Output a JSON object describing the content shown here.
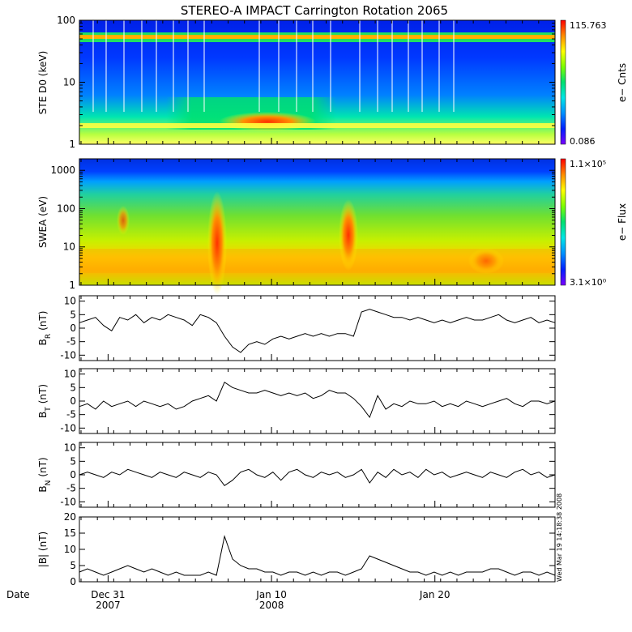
{
  "title": "STEREO-A IMPACT Carrington Rotation 2065",
  "timestamp": "Wed Mar 19 14:18:38 2008",
  "xaxis": {
    "date_label": "Date",
    "ticks": [
      {
        "day": "Dec 31",
        "year": "2007",
        "pos": 0.0603
      },
      {
        "day": "Jan 10",
        "year": "2008",
        "pos": 0.4039
      },
      {
        "day": "Jan 20",
        "year": "",
        "pos": 0.7474
      }
    ]
  },
  "colorbar_colors": [
    "#7a00ff",
    "#0020ff",
    "#0090ff",
    "#00e6e6",
    "#00e070",
    "#7cff00",
    "#ffff00",
    "#ff8c00",
    "#ff0000"
  ],
  "chart_data": [
    {
      "type": "heatmap",
      "ylabel": "STE D0 (keV)",
      "yscale": "log",
      "ylim": [
        1,
        100
      ],
      "yticks": [
        "1",
        "10",
        "100"
      ],
      "colorbar": {
        "label": "e− Cnts",
        "max": "115.763",
        "min": "0.086"
      }
    },
    {
      "type": "heatmap",
      "ylabel": "SWEA (eV)",
      "yscale": "log",
      "ylim": [
        1,
        2000
      ],
      "yticks": [
        "1",
        "10",
        "100",
        "1000"
      ],
      "colorbar": {
        "label": "e− Flux",
        "max": "1.1×10⁵",
        "min": "3.1×10⁰"
      }
    },
    {
      "type": "line",
      "ylabel_main": "B",
      "ylabel_sub": "R",
      "ylabel_unit": "(nT)",
      "ylim": [
        -12,
        12
      ],
      "yticks": [
        -10,
        -5,
        0,
        5,
        10
      ],
      "series": [
        {
          "values": [
            2,
            3,
            4,
            1,
            -1,
            4,
            3,
            5,
            2,
            4,
            3,
            5,
            4,
            3,
            1,
            5,
            4,
            2,
            -3,
            -7,
            -9,
            -6,
            -5,
            -6,
            -4,
            -3,
            -4,
            -3,
            -2,
            -3,
            -2,
            -3,
            -2,
            -2,
            -3,
            6,
            7,
            6,
            5,
            4,
            4,
            3,
            4,
            3,
            2,
            3,
            2,
            3,
            4,
            3,
            3,
            4,
            5,
            3,
            2,
            3,
            4,
            2,
            3,
            2
          ]
        }
      ]
    },
    {
      "type": "line",
      "ylabel_main": "B",
      "ylabel_sub": "T",
      "ylabel_unit": "(nT)",
      "ylim": [
        -12,
        12
      ],
      "yticks": [
        -10,
        -5,
        0,
        5,
        10
      ],
      "series": [
        {
          "values": [
            -2,
            -1,
            -3,
            0,
            -2,
            -1,
            0,
            -2,
            0,
            -1,
            -2,
            -1,
            -3,
            -2,
            0,
            1,
            2,
            0,
            7,
            5,
            4,
            3,
            3,
            4,
            3,
            2,
            3,
            2,
            3,
            1,
            2,
            4,
            3,
            3,
            1,
            -2,
            -6,
            2,
            -3,
            -1,
            -2,
            0,
            -1,
            -1,
            0,
            -2,
            -1,
            -2,
            0,
            -1,
            -2,
            -1,
            0,
            1,
            -1,
            -2,
            0,
            0,
            -1,
            0
          ]
        }
      ]
    },
    {
      "type": "line",
      "ylabel_main": "B",
      "ylabel_sub": "N",
      "ylabel_unit": "(nT)",
      "ylim": [
        -12,
        12
      ],
      "yticks": [
        -10,
        -5,
        0,
        5,
        10
      ],
      "series": [
        {
          "values": [
            0,
            1,
            0,
            -1,
            1,
            0,
            2,
            1,
            0,
            -1,
            1,
            0,
            -1,
            1,
            0,
            -1,
            1,
            0,
            -4,
            -2,
            1,
            2,
            0,
            -1,
            1,
            -2,
            1,
            2,
            0,
            -1,
            1,
            0,
            1,
            -1,
            0,
            2,
            -3,
            1,
            -1,
            2,
            0,
            1,
            -1,
            2,
            0,
            1,
            -1,
            0,
            1,
            0,
            -1,
            1,
            0,
            -1,
            1,
            2,
            0,
            1,
            -1,
            0
          ]
        }
      ]
    },
    {
      "type": "line",
      "ylabel_main": "|B| (nT)",
      "ylabel_sub": "",
      "ylabel_unit": "",
      "ylim": [
        0,
        20
      ],
      "yticks": [
        0,
        5,
        10,
        15,
        20
      ],
      "series": [
        {
          "values": [
            3,
            4,
            3,
            2,
            3,
            4,
            5,
            4,
            3,
            4,
            3,
            2,
            3,
            2,
            2,
            2,
            3,
            2,
            14,
            7,
            5,
            4,
            4,
            3,
            3,
            2,
            3,
            3,
            2,
            3,
            2,
            3,
            3,
            2,
            3,
            4,
            8,
            7,
            6,
            5,
            4,
            3,
            3,
            2,
            3,
            2,
            3,
            2,
            3,
            3,
            3,
            4,
            4,
            3,
            2,
            3,
            3,
            2,
            3,
            2
          ]
        }
      ]
    }
  ]
}
